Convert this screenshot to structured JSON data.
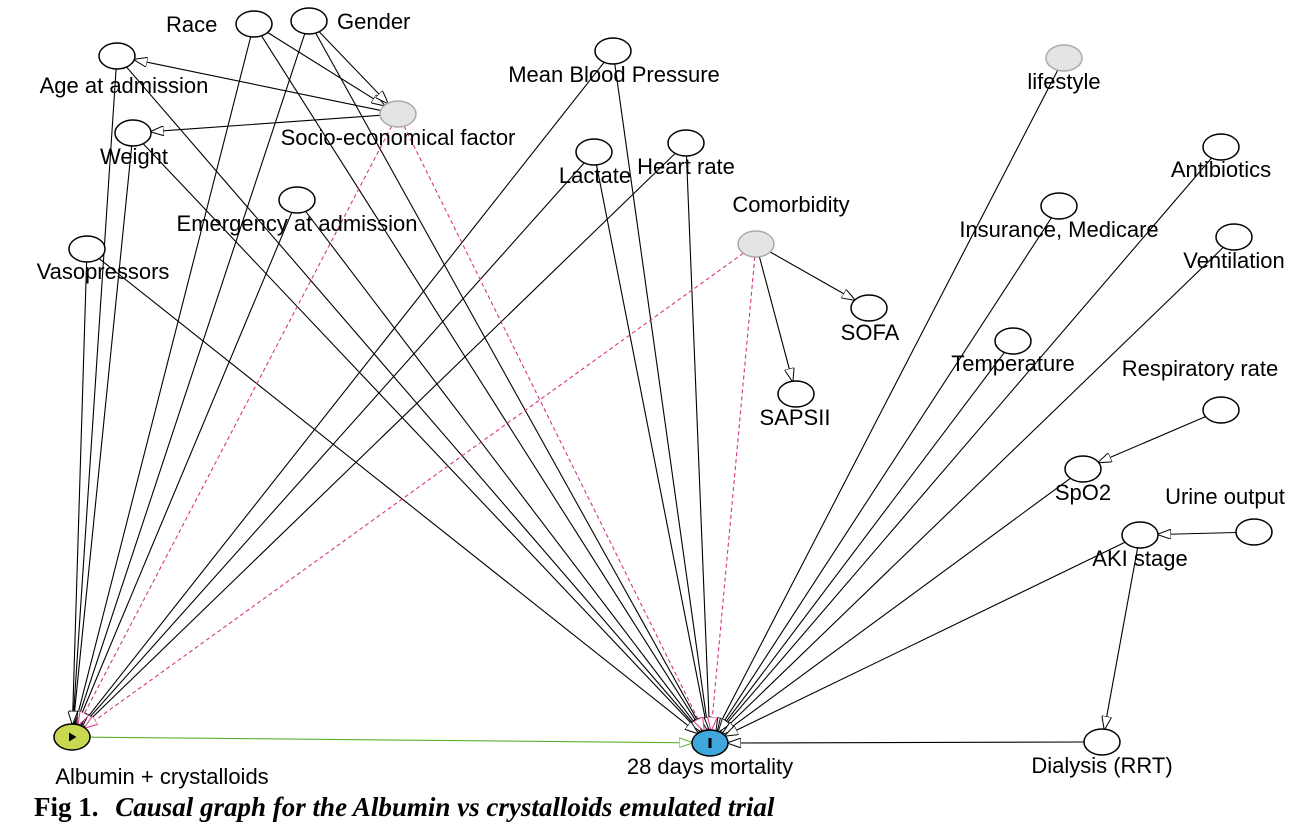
{
  "diagram": {
    "nodes": [
      {
        "id": "race",
        "label": "Race",
        "kind": "covariate"
      },
      {
        "id": "gender",
        "label": "Gender",
        "kind": "covariate"
      },
      {
        "id": "age",
        "label": "Age at admission",
        "kind": "covariate"
      },
      {
        "id": "socio",
        "label": "Socio-economical factor",
        "kind": "latent"
      },
      {
        "id": "weight",
        "label": "Weight",
        "kind": "covariate"
      },
      {
        "id": "emergency",
        "label": "Emergency at admission",
        "kind": "covariate"
      },
      {
        "id": "vaso",
        "label": "Vasopressors",
        "kind": "covariate"
      },
      {
        "id": "mbp",
        "label": "Mean Blood Pressure",
        "kind": "covariate"
      },
      {
        "id": "lactate",
        "label": "Lactate",
        "kind": "covariate"
      },
      {
        "id": "hr",
        "label": "Heart rate",
        "kind": "covariate"
      },
      {
        "id": "comorb",
        "label": "Comorbidity",
        "kind": "latent"
      },
      {
        "id": "sofa",
        "label": "SOFA",
        "kind": "covariate"
      },
      {
        "id": "saps",
        "label": "SAPSII",
        "kind": "covariate"
      },
      {
        "id": "lifestyle",
        "label": "lifestyle",
        "kind": "latent"
      },
      {
        "id": "insurance",
        "label": "Insurance, Medicare",
        "kind": "covariate"
      },
      {
        "id": "antibiotics",
        "label": "Antibiotics",
        "kind": "covariate"
      },
      {
        "id": "ventilation",
        "label": "Ventilation",
        "kind": "covariate"
      },
      {
        "id": "temp",
        "label": "Temperature",
        "kind": "covariate"
      },
      {
        "id": "resp",
        "label": "Respiratory rate",
        "kind": "covariate"
      },
      {
        "id": "spo2",
        "label": "SpO2",
        "kind": "covariate"
      },
      {
        "id": "urine",
        "label": "Urine output",
        "kind": "covariate"
      },
      {
        "id": "aki",
        "label": "AKI stage",
        "kind": "covariate"
      },
      {
        "id": "dialysis",
        "label": "Dialysis (RRT)",
        "kind": "covariate"
      },
      {
        "id": "treat",
        "label": "Albumin + crystalloids",
        "kind": "exposure"
      },
      {
        "id": "outcome",
        "label": "28 days mortality",
        "kind": "outcome"
      }
    ],
    "edges": [
      {
        "from": "race",
        "to": "socio",
        "type": "causal"
      },
      {
        "from": "gender",
        "to": "socio",
        "type": "causal"
      },
      {
        "from": "socio",
        "to": "age",
        "type": "causal"
      },
      {
        "from": "socio",
        "to": "weight",
        "type": "causal"
      },
      {
        "from": "race",
        "to": "treat",
        "type": "causal"
      },
      {
        "from": "gender",
        "to": "treat",
        "type": "causal"
      },
      {
        "from": "age",
        "to": "treat",
        "type": "causal"
      },
      {
        "from": "weight",
        "to": "treat",
        "type": "causal"
      },
      {
        "from": "vaso",
        "to": "treat",
        "type": "causal"
      },
      {
        "from": "emergency",
        "to": "treat",
        "type": "causal"
      },
      {
        "from": "mbp",
        "to": "treat",
        "type": "causal"
      },
      {
        "from": "lactate",
        "to": "treat",
        "type": "causal"
      },
      {
        "from": "hr",
        "to": "treat",
        "type": "causal"
      },
      {
        "from": "race",
        "to": "outcome",
        "type": "causal"
      },
      {
        "from": "gender",
        "to": "outcome",
        "type": "causal"
      },
      {
        "from": "age",
        "to": "outcome",
        "type": "causal"
      },
      {
        "from": "weight",
        "to": "outcome",
        "type": "causal"
      },
      {
        "from": "emergency",
        "to": "outcome",
        "type": "causal"
      },
      {
        "from": "vaso",
        "to": "outcome",
        "type": "causal"
      },
      {
        "from": "mbp",
        "to": "outcome",
        "type": "causal"
      },
      {
        "from": "lactate",
        "to": "outcome",
        "type": "causal"
      },
      {
        "from": "hr",
        "to": "outcome",
        "type": "causal"
      },
      {
        "from": "lifestyle",
        "to": "outcome",
        "type": "causal"
      },
      {
        "from": "insurance",
        "to": "outcome",
        "type": "causal"
      },
      {
        "from": "antibiotics",
        "to": "outcome",
        "type": "causal"
      },
      {
        "from": "ventilation",
        "to": "outcome",
        "type": "causal"
      },
      {
        "from": "temp",
        "to": "outcome",
        "type": "causal"
      },
      {
        "from": "spo2",
        "to": "outcome",
        "type": "causal"
      },
      {
        "from": "aki",
        "to": "outcome",
        "type": "causal"
      },
      {
        "from": "dialysis",
        "to": "outcome",
        "type": "causal"
      },
      {
        "from": "comorb",
        "to": "sofa",
        "type": "causal"
      },
      {
        "from": "comorb",
        "to": "saps",
        "type": "causal"
      },
      {
        "from": "resp",
        "to": "spo2",
        "type": "causal"
      },
      {
        "from": "urine",
        "to": "aki",
        "type": "causal"
      },
      {
        "from": "aki",
        "to": "dialysis",
        "type": "causal"
      },
      {
        "from": "socio",
        "to": "treat",
        "type": "biasing"
      },
      {
        "from": "socio",
        "to": "outcome",
        "type": "biasing"
      },
      {
        "from": "comorb",
        "to": "treat",
        "type": "biasing"
      },
      {
        "from": "comorb",
        "to": "outcome",
        "type": "biasing"
      },
      {
        "from": "treat",
        "to": "outcome",
        "type": "causal-path"
      }
    ]
  },
  "colors": {
    "edge": "#000000",
    "biasing_edge": "#d6348a",
    "causal_path_edge": "#5cb030",
    "exposure_fill": "#c8d850",
    "outcome_fill": "#3fa7dc",
    "latent_fill": "#e4e4e4",
    "node_fill": "#ffffff",
    "node_stroke": "#000000",
    "latent_stroke": "#aaaaaa"
  },
  "caption": {
    "prefix": "Fig 1.",
    "title": "Causal graph for the Albumin vs crystalloids emulated trial"
  }
}
